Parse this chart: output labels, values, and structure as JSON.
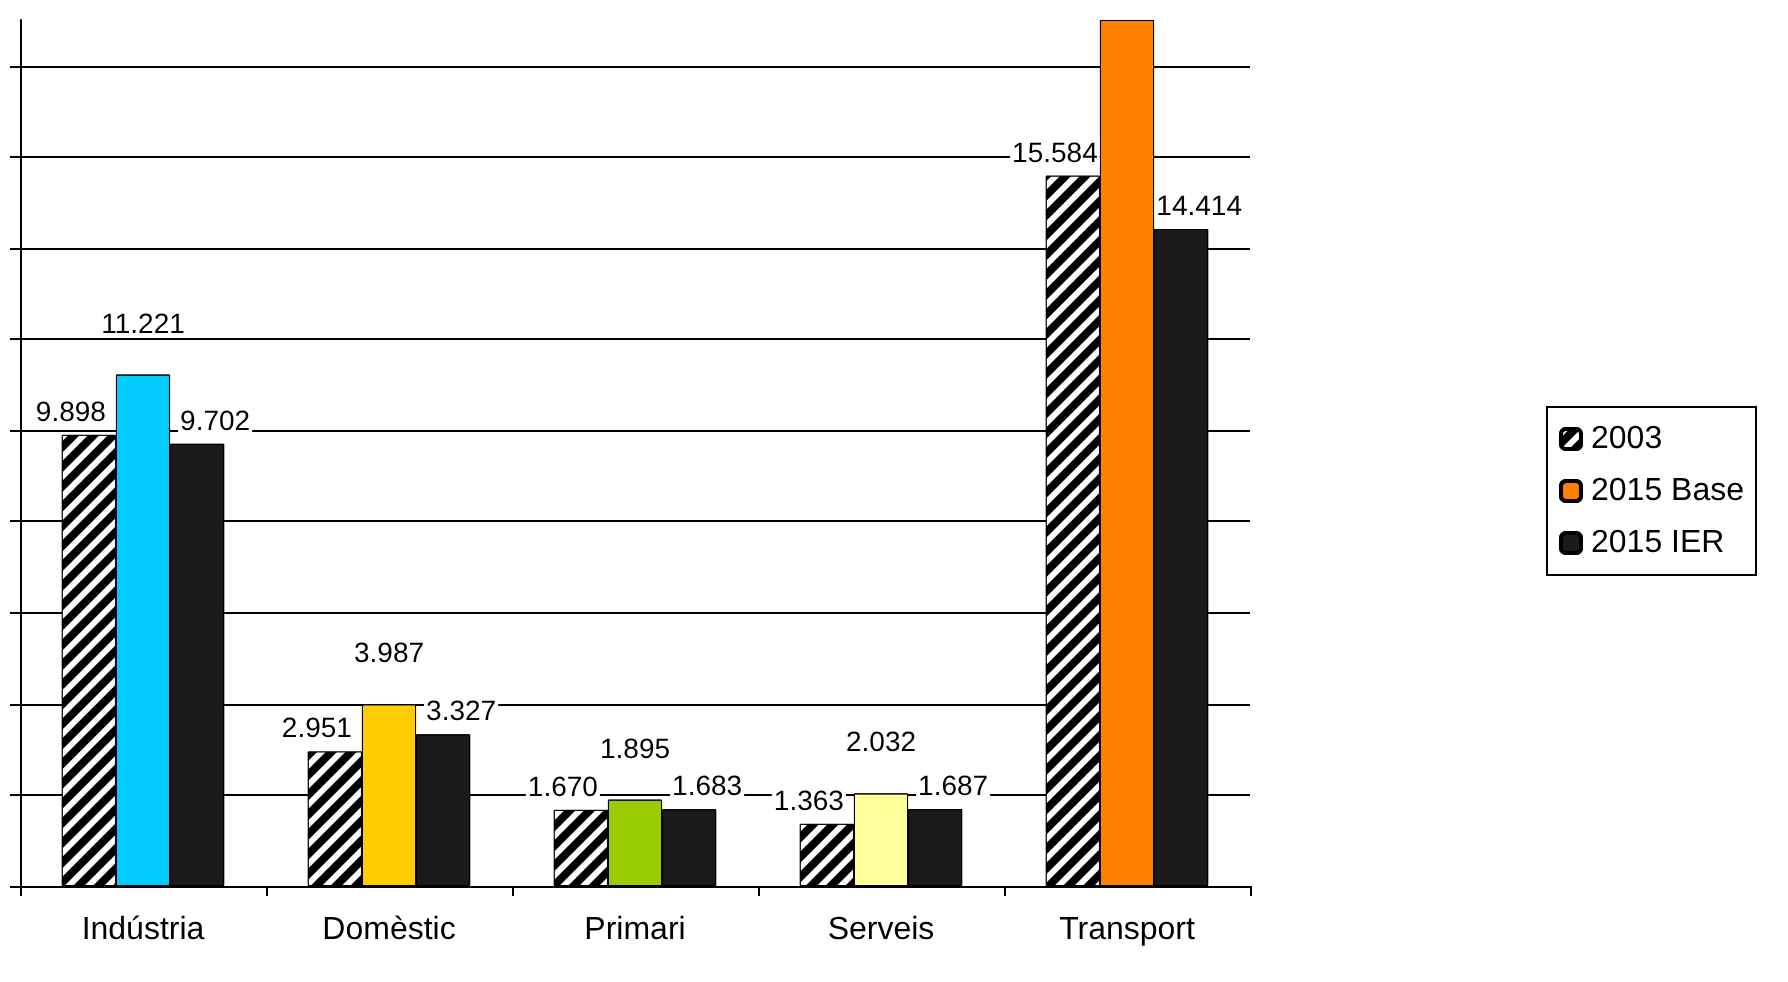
{
  "chart_data": {
    "type": "bar",
    "categories": [
      "Indústria",
      "Domèstic",
      "Primari",
      "Serveis",
      "Transport"
    ],
    "series": [
      {
        "name": "2003",
        "color": "#000000",
        "values": [
          9.898,
          2.951,
          1.67,
          1.363,
          15.584
        ],
        "value_labels": [
          "9.898",
          "2.951",
          "1.670",
          "1.363",
          "15.584"
        ]
      },
      {
        "name": "2015 Base",
        "color": "#ff8000",
        "colors": [
          "#00ccff",
          "#ffcc00",
          "#99cc00",
          "#ffff99",
          "#ff8000"
        ],
        "values": [
          11.221,
          3.987,
          1.895,
          2.032,
          19
        ],
        "value_labels": [
          "11.221",
          "3.987",
          "1.895",
          "2.032",
          null
        ]
      },
      {
        "name": "2015 IER",
        "color": "#1a1a1a",
        "values": [
          9.702,
          3.327,
          1.683,
          1.687,
          14.414
        ],
        "value_labels": [
          "9.702",
          "3.327",
          "1.683",
          "1.687",
          "14.414"
        ]
      }
    ],
    "ylim": [
      0,
      19
    ],
    "yticks": [
      {
        "value": 0,
        "label": null
      },
      {
        "value": 2,
        "label": null
      },
      {
        "value": 4,
        "label": null
      },
      {
        "value": 6,
        "label": null
      },
      {
        "value": 8,
        "label": null
      },
      {
        "value": 10,
        "label": null
      },
      {
        "value": 12,
        "label": null
      },
      {
        "value": 14,
        "label": null
      },
      {
        "value": 16,
        "label": null
      },
      {
        "value": 18,
        "label": null
      }
    ],
    "grid": "y",
    "legend": "right",
    "tick_labels": "x"
  }
}
